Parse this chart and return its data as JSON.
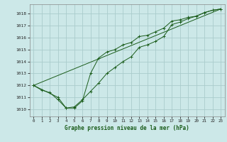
{
  "title": "Graphe pression niveau de la mer (hPa)",
  "bg_color": "#cce8e8",
  "grid_color": "#aacccc",
  "line_color": "#1a5c1a",
  "xlim": [
    -0.5,
    23.5
  ],
  "ylim": [
    1009.4,
    1018.8
  ],
  "yticks": [
    1010,
    1011,
    1012,
    1013,
    1014,
    1015,
    1016,
    1017,
    1018
  ],
  "xticks": [
    0,
    1,
    2,
    3,
    4,
    5,
    6,
    7,
    8,
    9,
    10,
    11,
    12,
    13,
    14,
    15,
    16,
    17,
    18,
    19,
    20,
    21,
    22,
    23
  ],
  "series1_x": [
    0,
    1,
    2,
    3,
    4,
    5,
    6,
    7,
    8,
    9,
    10,
    11,
    12,
    13,
    14,
    15,
    16,
    17,
    18,
    19,
    20,
    21,
    22,
    23
  ],
  "series1_y": [
    1012.0,
    1011.6,
    1011.4,
    1010.8,
    1010.1,
    1010.2,
    1010.8,
    1011.5,
    1012.2,
    1013.0,
    1013.5,
    1014.0,
    1014.4,
    1015.2,
    1015.4,
    1015.7,
    1016.1,
    1017.1,
    1017.3,
    1017.6,
    1017.8,
    1018.1,
    1018.3,
    1018.4
  ],
  "series2_x": [
    0,
    3,
    4,
    5,
    6,
    7,
    8,
    9,
    10,
    11,
    12,
    13,
    14,
    15,
    16,
    17,
    18,
    19,
    20,
    21,
    22,
    23
  ],
  "series2_y": [
    1012.0,
    1011.0,
    1010.1,
    1010.1,
    1010.7,
    1013.0,
    1014.3,
    1014.8,
    1015.0,
    1015.4,
    1015.6,
    1016.1,
    1016.2,
    1016.5,
    1016.8,
    1017.4,
    1017.5,
    1017.7,
    1017.8,
    1018.1,
    1018.3,
    1018.4
  ],
  "series3_x": [
    0,
    23
  ],
  "series3_y": [
    1012.0,
    1018.4
  ]
}
